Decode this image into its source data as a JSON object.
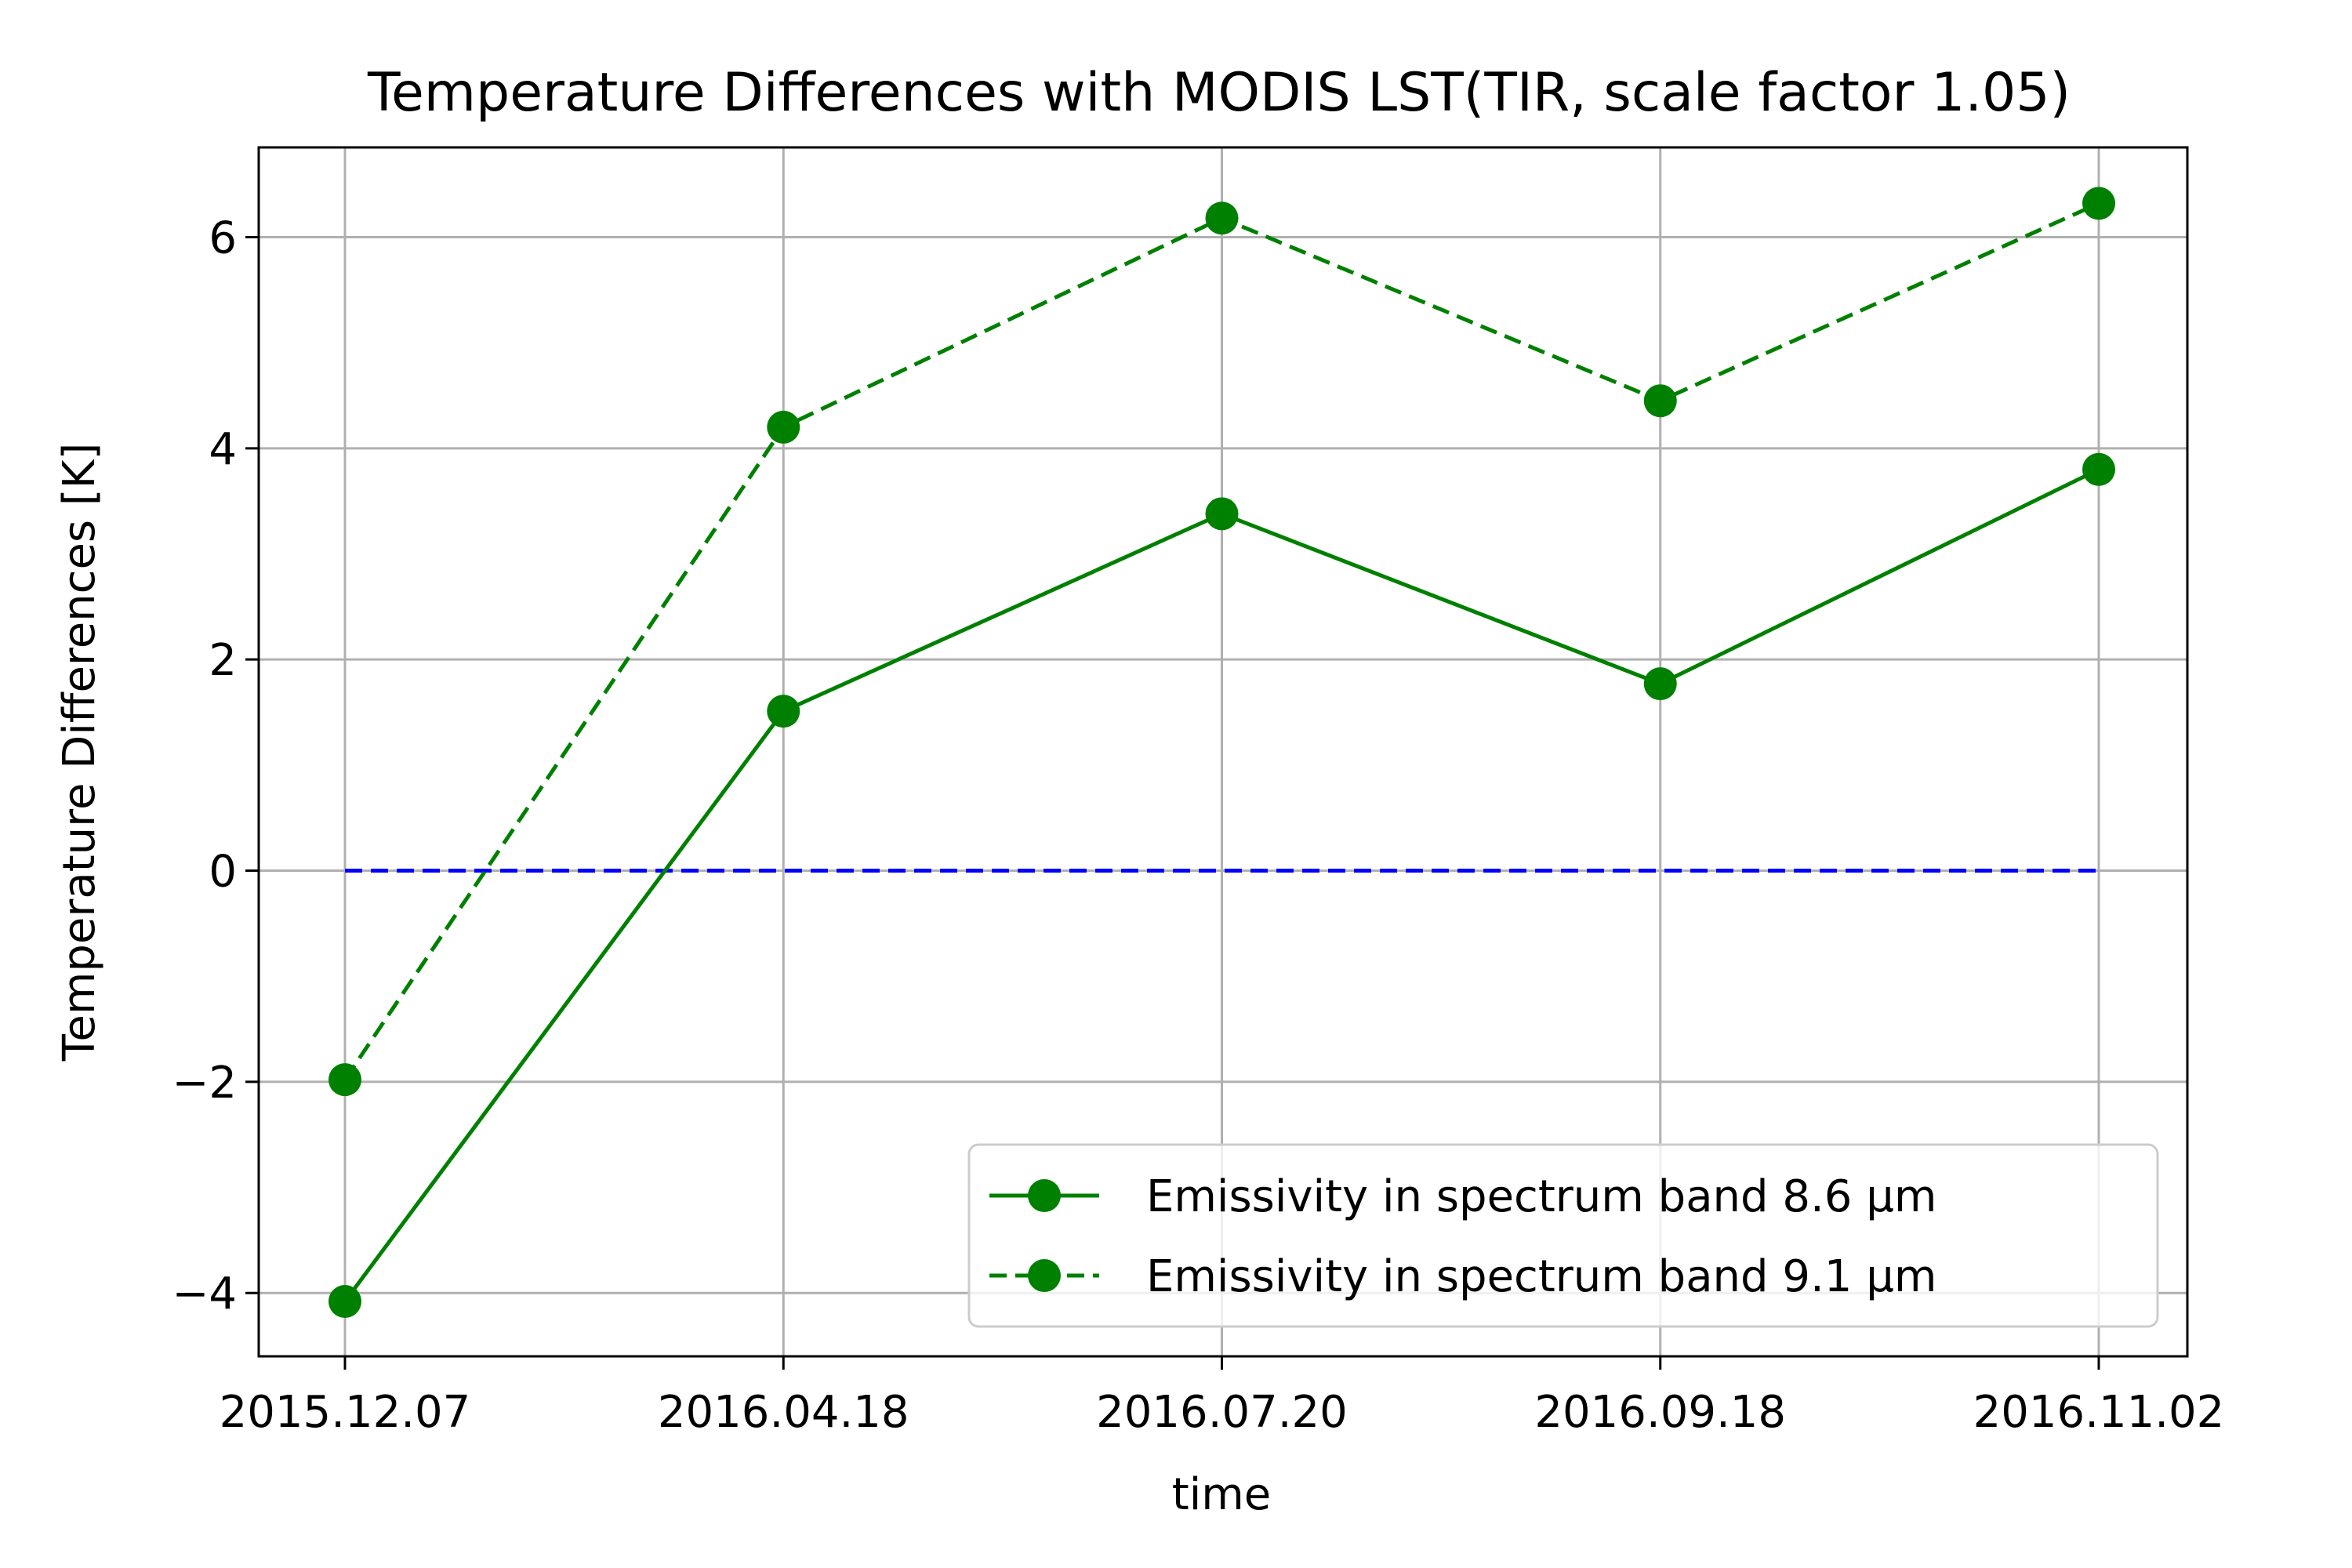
{
  "chart_data": {
    "type": "line",
    "title": "Temperature Differences with MODIS LST(TIR, scale factor 1.05)",
    "xlabel": "time",
    "ylabel": "Temperature Differences [K]",
    "categories": [
      "2015.12.07",
      "2016.04.18",
      "2016.07.20",
      "2016.09.18",
      "2016.11.02"
    ],
    "yticks": [
      -4,
      -2,
      0,
      2,
      4,
      6
    ],
    "ytick_labels": [
      "−4",
      "−2",
      "0",
      "2",
      "4",
      "6"
    ],
    "ylim": [
      -4.6,
      6.85
    ],
    "grid": true,
    "legend_position": "lower-right",
    "series": [
      {
        "name": "Emissivity in spectrum band 8.6 μm",
        "values": [
          -4.08,
          1.51,
          3.38,
          1.77,
          3.8
        ],
        "color": "#008000",
        "linestyle": "solid",
        "marker": "circle"
      },
      {
        "name": "Emissivity in spectrum band 9.1 μm",
        "values": [
          -1.98,
          4.2,
          6.18,
          4.45,
          6.32
        ],
        "color": "#008000",
        "linestyle": "dashed",
        "marker": "circle"
      }
    ],
    "reference_line": {
      "y": 0,
      "color": "#0000ff",
      "linestyle": "dashed"
    }
  }
}
